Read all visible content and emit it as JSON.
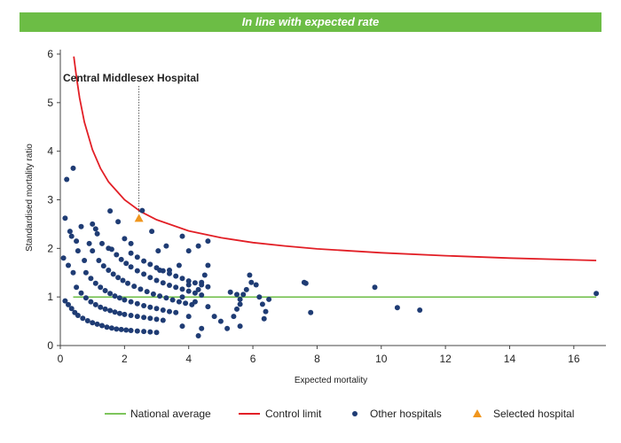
{
  "banner": "In line with expected rate",
  "chart_data": {
    "type": "scatter",
    "xlabel": "Expected mortality",
    "ylabel": "Standardised mortality ratio",
    "xlim": [
      0,
      17
    ],
    "ylim": [
      0,
      6
    ],
    "xticks": [
      0,
      2,
      4,
      6,
      8,
      10,
      12,
      14,
      16
    ],
    "yticks": [
      0,
      1,
      2,
      3,
      4,
      5,
      6
    ],
    "colors": {
      "national": "#6cbd45",
      "control": "#e21f26",
      "other": "#1f3c74",
      "selected": "#f0961e"
    },
    "series": [
      {
        "name": "National average",
        "kind": "line",
        "points": [
          [
            0.4,
            1
          ],
          [
            16.7,
            1
          ]
        ]
      },
      {
        "name": "Control limit",
        "kind": "line",
        "points": [
          [
            0.42,
            5.95
          ],
          [
            0.5,
            5.54
          ],
          [
            0.6,
            5.1
          ],
          [
            0.75,
            4.6
          ],
          [
            1.0,
            4.03
          ],
          [
            1.25,
            3.65
          ],
          [
            1.5,
            3.37
          ],
          [
            2.0,
            3.0
          ],
          [
            2.5,
            2.76
          ],
          [
            3.0,
            2.59
          ],
          [
            4.0,
            2.36
          ],
          [
            5.0,
            2.22
          ],
          [
            6.0,
            2.12
          ],
          [
            7.0,
            2.05
          ],
          [
            8.0,
            1.99
          ],
          [
            10.0,
            1.91
          ],
          [
            12.0,
            1.85
          ],
          [
            14.0,
            1.8
          ],
          [
            16.7,
            1.75
          ]
        ]
      },
      {
        "name": "Other hospitals",
        "kind": "scatter",
        "points": [
          [
            0.1,
            1.8
          ],
          [
            0.15,
            2.62
          ],
          [
            0.2,
            3.42
          ],
          [
            0.4,
            3.65
          ],
          [
            0.3,
            2.35
          ],
          [
            0.35,
            2.25
          ],
          [
            0.5,
            2.15
          ],
          [
            0.55,
            1.95
          ],
          [
            0.25,
            1.65
          ],
          [
            0.4,
            1.5
          ],
          [
            0.75,
            1.75
          ],
          [
            0.65,
            2.45
          ],
          [
            0.9,
            2.1
          ],
          [
            1.0,
            2.5
          ],
          [
            1.1,
            2.4
          ],
          [
            1.15,
            2.3
          ],
          [
            1.3,
            2.1
          ],
          [
            1.5,
            2.0
          ],
          [
            1.0,
            1.95
          ],
          [
            1.55,
            2.77
          ],
          [
            1.8,
            2.55
          ],
          [
            2.0,
            2.2
          ],
          [
            2.2,
            2.1
          ],
          [
            2.55,
            2.78
          ],
          [
            2.85,
            2.35
          ],
          [
            3.05,
            1.95
          ],
          [
            3.3,
            2.05
          ],
          [
            3.8,
            2.25
          ],
          [
            4.0,
            1.95
          ],
          [
            4.3,
            2.05
          ],
          [
            4.6,
            2.15
          ],
          [
            3.1,
            1.55
          ],
          [
            3.4,
            1.55
          ],
          [
            3.7,
            1.65
          ],
          [
            4.5,
            1.45
          ],
          [
            4.6,
            1.65
          ],
          [
            4.0,
            1.25
          ],
          [
            4.3,
            1.15
          ],
          [
            4.4,
            1.3
          ],
          [
            3.8,
            1.0
          ],
          [
            4.2,
            0.9
          ],
          [
            4.6,
            0.8
          ],
          [
            4.8,
            0.6
          ],
          [
            5.0,
            0.5
          ],
          [
            5.2,
            0.35
          ],
          [
            4.3,
            0.2
          ],
          [
            4.4,
            0.35
          ],
          [
            3.8,
            0.4
          ],
          [
            4.0,
            0.6
          ],
          [
            5.3,
            1.1
          ],
          [
            5.5,
            1.05
          ],
          [
            5.6,
            0.95
          ],
          [
            5.7,
            1.05
          ],
          [
            5.5,
            0.75
          ],
          [
            5.6,
            0.85
          ],
          [
            5.8,
            1.15
          ],
          [
            5.9,
            1.45
          ],
          [
            5.95,
            1.3
          ],
          [
            6.1,
            1.25
          ],
          [
            6.2,
            1.0
          ],
          [
            6.3,
            0.85
          ],
          [
            6.35,
            0.55
          ],
          [
            6.4,
            0.7
          ],
          [
            6.5,
            0.95
          ],
          [
            5.4,
            0.6
          ],
          [
            5.6,
            0.4
          ],
          [
            7.6,
            1.3
          ],
          [
            7.65,
            1.28
          ],
          [
            7.8,
            0.68
          ],
          [
            9.8,
            1.2
          ],
          [
            10.5,
            0.78
          ],
          [
            11.2,
            0.73
          ],
          [
            16.7,
            1.07
          ],
          [
            0.15,
            0.92
          ],
          [
            0.25,
            0.84
          ],
          [
            0.35,
            0.76
          ],
          [
            0.45,
            0.68
          ],
          [
            0.55,
            0.62
          ],
          [
            0.7,
            0.56
          ],
          [
            0.85,
            0.51
          ],
          [
            1.0,
            0.47
          ],
          [
            1.15,
            0.44
          ],
          [
            1.3,
            0.41
          ],
          [
            1.45,
            0.38
          ],
          [
            1.6,
            0.36
          ],
          [
            1.75,
            0.34
          ],
          [
            1.9,
            0.33
          ],
          [
            2.05,
            0.32
          ],
          [
            2.2,
            0.31
          ],
          [
            2.4,
            0.3
          ],
          [
            2.6,
            0.29
          ],
          [
            2.8,
            0.28
          ],
          [
            3.0,
            0.27
          ],
          [
            0.5,
            1.2
          ],
          [
            0.65,
            1.08
          ],
          [
            0.8,
            0.98
          ],
          [
            0.95,
            0.9
          ],
          [
            1.1,
            0.84
          ],
          [
            1.25,
            0.79
          ],
          [
            1.4,
            0.75
          ],
          [
            1.55,
            0.72
          ],
          [
            1.7,
            0.69
          ],
          [
            1.85,
            0.66
          ],
          [
            2.0,
            0.64
          ],
          [
            2.2,
            0.62
          ],
          [
            2.4,
            0.6
          ],
          [
            2.6,
            0.58
          ],
          [
            2.8,
            0.56
          ],
          [
            3.0,
            0.54
          ],
          [
            3.2,
            0.52
          ],
          [
            0.8,
            1.5
          ],
          [
            0.95,
            1.38
          ],
          [
            1.1,
            1.28
          ],
          [
            1.25,
            1.2
          ],
          [
            1.4,
            1.13
          ],
          [
            1.55,
            1.07
          ],
          [
            1.7,
            1.02
          ],
          [
            1.85,
            0.98
          ],
          [
            2.0,
            0.94
          ],
          [
            2.2,
            0.9
          ],
          [
            2.4,
            0.86
          ],
          [
            2.6,
            0.82
          ],
          [
            2.8,
            0.79
          ],
          [
            3.0,
            0.76
          ],
          [
            3.2,
            0.73
          ],
          [
            3.4,
            0.7
          ],
          [
            3.6,
            0.68
          ],
          [
            1.2,
            1.75
          ],
          [
            1.35,
            1.64
          ],
          [
            1.5,
            1.55
          ],
          [
            1.65,
            1.47
          ],
          [
            1.8,
            1.4
          ],
          [
            1.95,
            1.34
          ],
          [
            2.1,
            1.28
          ],
          [
            2.3,
            1.22
          ],
          [
            2.5,
            1.16
          ],
          [
            2.7,
            1.11
          ],
          [
            2.9,
            1.06
          ],
          [
            3.1,
            1.02
          ],
          [
            3.3,
            0.98
          ],
          [
            3.5,
            0.94
          ],
          [
            3.7,
            0.9
          ],
          [
            3.9,
            0.87
          ],
          [
            4.1,
            0.84
          ],
          [
            1.6,
            1.98
          ],
          [
            1.75,
            1.87
          ],
          [
            1.9,
            1.77
          ],
          [
            2.05,
            1.69
          ],
          [
            2.2,
            1.62
          ],
          [
            2.4,
            1.54
          ],
          [
            2.6,
            1.47
          ],
          [
            2.8,
            1.4
          ],
          [
            3.0,
            1.34
          ],
          [
            3.2,
            1.29
          ],
          [
            3.4,
            1.24
          ],
          [
            3.6,
            1.2
          ],
          [
            3.8,
            1.16
          ],
          [
            4.0,
            1.12
          ],
          [
            4.2,
            1.08
          ],
          [
            4.4,
            1.04
          ],
          [
            2.2,
            1.9
          ],
          [
            2.4,
            1.82
          ],
          [
            2.6,
            1.74
          ],
          [
            2.8,
            1.67
          ],
          [
            3.0,
            1.6
          ],
          [
            3.2,
            1.54
          ],
          [
            3.4,
            1.48
          ],
          [
            3.6,
            1.43
          ],
          [
            3.8,
            1.38
          ],
          [
            4.0,
            1.33
          ],
          [
            4.2,
            1.29
          ],
          [
            4.4,
            1.25
          ],
          [
            4.6,
            1.21
          ]
        ]
      },
      {
        "name": "Selected hospital",
        "kind": "marker",
        "points": [
          [
            2.45,
            2.62
          ]
        ]
      }
    ],
    "annotations": [
      {
        "text": "Central Middlesex Hospital",
        "x": 2.45,
        "y": 2.62
      }
    ],
    "legend": {
      "position": "bottom",
      "items": [
        "National average",
        "Control limit",
        "Other hospitals",
        "Selected hospital"
      ]
    }
  }
}
